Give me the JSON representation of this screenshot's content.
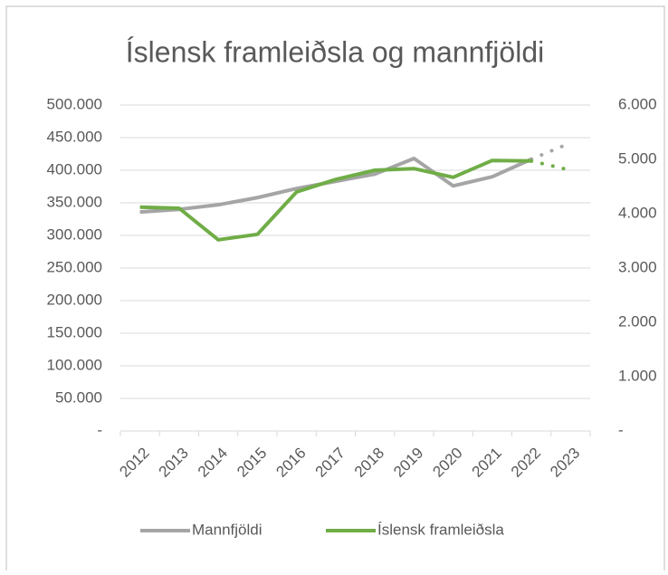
{
  "chart_data": {
    "type": "line",
    "title": "Íslensk framleiðsla og mannfjöldi",
    "categories": [
      "2012",
      "2013",
      "2014",
      "2015",
      "2016",
      "2017",
      "2018",
      "2019",
      "2020",
      "2021",
      "2022",
      "2023"
    ],
    "series": [
      {
        "name": "Mannfjöldi",
        "color": "#a5a5a5",
        "axis": "y",
        "values": [
          336000,
          340000,
          347000,
          358000,
          372000,
          383000,
          394000,
          418000,
          376000,
          390000,
          417000,
          442000
        ]
      },
      {
        "name": "Íslensk framleiðsla",
        "color": "#70ad47",
        "axis": "y2",
        "values": [
          4120,
          4100,
          3520,
          3620,
          4400,
          4630,
          4800,
          4830,
          4670,
          4980,
          4970,
          4800
        ]
      }
    ],
    "dashed_last_segment": true,
    "ylim": [
      0,
      500000
    ],
    "yticks": [
      {
        "value": 0,
        "label": "-"
      },
      {
        "value": 50000,
        "label": "50.000"
      },
      {
        "value": 100000,
        "label": "100.000"
      },
      {
        "value": 150000,
        "label": "150.000"
      },
      {
        "value": 200000,
        "label": "200.000"
      },
      {
        "value": 250000,
        "label": "250.000"
      },
      {
        "value": 300000,
        "label": "300.000"
      },
      {
        "value": 350000,
        "label": "350.000"
      },
      {
        "value": 400000,
        "label": "400.000"
      },
      {
        "value": 450000,
        "label": "450.000"
      },
      {
        "value": 500000,
        "label": "500.000"
      }
    ],
    "y2lim": [
      0,
      6000
    ],
    "y2ticks": [
      {
        "value": 0,
        "label": "-"
      },
      {
        "value": 1000,
        "label": "1.000"
      },
      {
        "value": 2000,
        "label": "2.000"
      },
      {
        "value": 3000,
        "label": "3.000"
      },
      {
        "value": 4000,
        "label": "4.000"
      },
      {
        "value": 5000,
        "label": "5.000"
      },
      {
        "value": 6000,
        "label": "6.000"
      }
    ],
    "grid": true,
    "legend": "bottom"
  }
}
